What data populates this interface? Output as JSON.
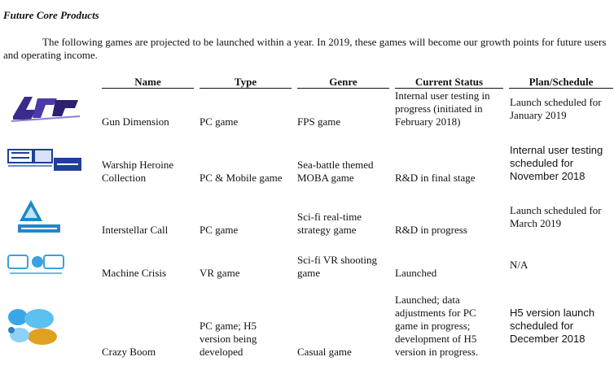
{
  "section_title": "Future Core Products",
  "intro": "The following games are projected to be launched within a year. In 2019, these games will become our growth points for future users and operating income.",
  "table": {
    "headers": [
      "Name",
      "Type",
      "Genre",
      "Current Status",
      "Plan/Schedule"
    ],
    "rows": [
      {
        "name": "Gun Dimension",
        "type": "PC game",
        "genre": "FPS game",
        "status": "Internal user testing in progress (initiated in February 2018)",
        "plan": "Launch scheduled for January 2019"
      },
      {
        "name": "Warship Heroine Collection",
        "type": "PC & Mobile game",
        "genre": "Sea-battle themed MOBA game",
        "status": "R&D in final stage",
        "plan": "Internal user testing scheduled for November 2018"
      },
      {
        "name": "Interstellar Call",
        "type": "PC game",
        "genre": "Sci-fi real-time strategy game",
        "status": "R&D in progress",
        "plan": "Launch scheduled for March 2019"
      },
      {
        "name": "Machine Crisis",
        "type": "VR game",
        "genre": "Sci-fi VR shooting game",
        "status": "Launched",
        "plan": "N/A"
      },
      {
        "name": "Crazy Boom",
        "type": "PC game; H5 version being developed",
        "genre": "Casual game",
        "status": "Launched; data adjustments for PC game in progress; development of H5 version in progress.",
        "plan": "H5 version launch scheduled for December 2018"
      }
    ]
  },
  "logos": [
    {
      "icon": "gun-dimension-logo",
      "color": "#3a2a8c"
    },
    {
      "icon": "warship-heroine-logo",
      "color": "#1f3f9a"
    },
    {
      "icon": "interstellar-call-logo",
      "color": "#1e88c8"
    },
    {
      "icon": "machine-crisis-logo",
      "color": "#3aa0e0"
    },
    {
      "icon": "crazy-boom-logo",
      "color": "#e0a020"
    }
  ]
}
